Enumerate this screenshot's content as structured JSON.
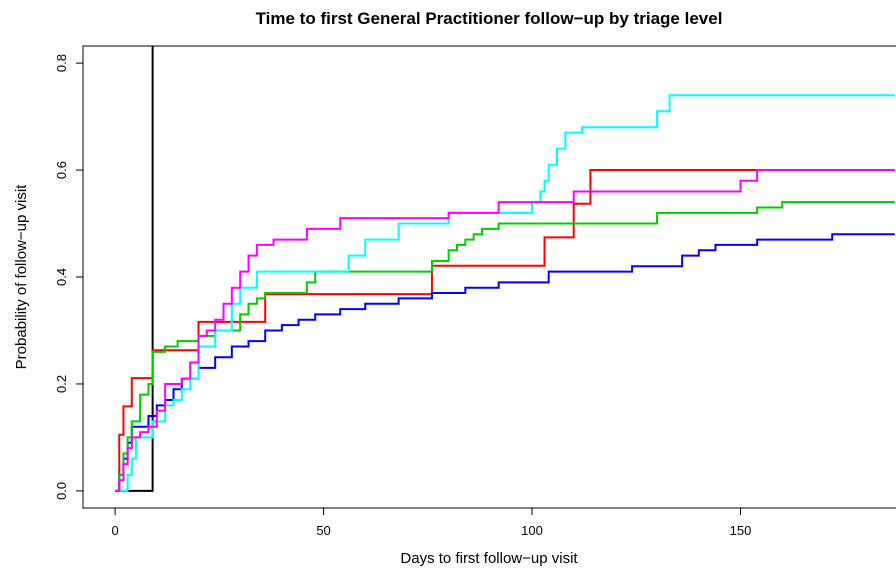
{
  "chart_data": {
    "type": "step",
    "title": "Time to first General Practitioner follow−up by triage level",
    "x_label": "Days to first follow−up visit",
    "y_label": "Probability of follow−up visit",
    "xlim": [
      -7.7,
      187.3
    ],
    "ylim": [
      -0.032,
      0.832
    ],
    "xticks": [
      0,
      50,
      100,
      150
    ],
    "yticks": [
      {
        "value": 0,
        "label": "0.0"
      },
      0.2,
      0.4,
      0.6,
      0.8
    ],
    "series": [
      {
        "color": "#000000",
        "x": [
          0,
          9
        ],
        "values": [
          0,
          1
        ]
      },
      {
        "color": "#ff0000",
        "x": [
          0,
          1,
          2,
          4,
          9,
          20,
          36,
          76,
          103,
          110,
          114,
          187
        ],
        "values": [
          0,
          0.105,
          0.158,
          0.211,
          0.263,
          0.316,
          0.368,
          0.421,
          0.474,
          0.537,
          0.6,
          0.6
        ]
      },
      {
        "color": "#0000ff",
        "x": [
          0,
          1,
          2,
          3,
          4,
          6,
          8,
          10,
          12,
          14,
          16,
          20,
          24,
          28,
          32,
          36,
          40,
          44,
          48,
          54,
          60,
          68,
          76,
          84,
          92,
          104,
          112,
          124,
          136,
          140,
          144,
          154,
          172,
          187
        ],
        "values": [
          0,
          0.03,
          0.06,
          0.09,
          0.12,
          0.12,
          0.14,
          0.16,
          0.17,
          0.19,
          0.21,
          0.23,
          0.25,
          0.27,
          0.28,
          0.3,
          0.31,
          0.32,
          0.33,
          0.34,
          0.35,
          0.36,
          0.37,
          0.38,
          0.39,
          0.41,
          0.41,
          0.42,
          0.44,
          0.45,
          0.46,
          0.47,
          0.48,
          0.48
        ]
      },
      {
        "color": "#00cc00",
        "x": [
          0,
          1,
          2,
          3,
          4,
          6,
          8,
          9,
          12,
          15,
          20,
          24,
          30,
          32,
          34,
          36,
          46,
          48,
          76,
          80,
          82,
          84,
          86,
          88,
          92,
          104,
          130,
          154,
          160,
          187
        ],
        "values": [
          0,
          0.03,
          0.07,
          0.1,
          0.13,
          0.18,
          0.2,
          0.26,
          0.27,
          0.28,
          0.29,
          0.3,
          0.33,
          0.35,
          0.36,
          0.37,
          0.39,
          0.41,
          0.43,
          0.45,
          0.46,
          0.47,
          0.48,
          0.49,
          0.5,
          0.5,
          0.52,
          0.53,
          0.54,
          0.54
        ]
      },
      {
        "color": "#00ffff",
        "x": [
          0,
          3,
          4,
          5,
          9,
          12,
          14,
          16,
          18,
          20,
          24,
          28,
          30,
          34,
          56,
          60,
          68,
          80,
          100,
          102,
          103,
          104,
          106,
          108,
          112,
          130,
          133,
          187
        ],
        "values": [
          0,
          0.03,
          0.06,
          0.1,
          0.13,
          0.16,
          0.17,
          0.19,
          0.21,
          0.27,
          0.3,
          0.35,
          0.38,
          0.41,
          0.44,
          0.47,
          0.5,
          0.52,
          0.54,
          0.56,
          0.58,
          0.61,
          0.64,
          0.67,
          0.68,
          0.71,
          0.74,
          0.74
        ]
      },
      {
        "color": "#ff00ff",
        "x": [
          0,
          1,
          2,
          3,
          4,
          6,
          8,
          10,
          12,
          16,
          18,
          20,
          22,
          24,
          26,
          28,
          30,
          32,
          34,
          38,
          46,
          54,
          80,
          92,
          110,
          120,
          150,
          154,
          187
        ],
        "values": [
          0,
          0.02,
          0.05,
          0.08,
          0.1,
          0.11,
          0.12,
          0.15,
          0.2,
          0.21,
          0.24,
          0.29,
          0.3,
          0.32,
          0.35,
          0.38,
          0.41,
          0.44,
          0.46,
          0.47,
          0.49,
          0.51,
          0.52,
          0.54,
          0.56,
          0.56,
          0.58,
          0.6,
          0.6
        ]
      }
    ]
  }
}
